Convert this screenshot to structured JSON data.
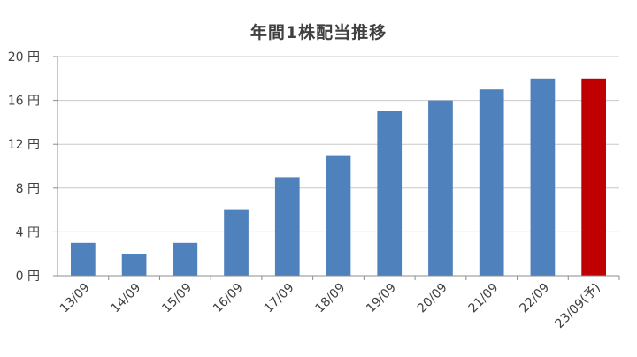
{
  "chart_data": {
    "type": "bar",
    "title": "年間1株配当推移",
    "xlabel": "",
    "ylabel": "",
    "categories": [
      "13/09",
      "14/09",
      "15/09",
      "16/09",
      "17/09",
      "18/09",
      "19/09",
      "20/09",
      "21/09",
      "22/09",
      "23/09(予)"
    ],
    "values": [
      3,
      2,
      3,
      6,
      9,
      11,
      15,
      16,
      17,
      18,
      18
    ],
    "ylim": [
      0,
      20
    ],
    "yticks": [
      0,
      4,
      8,
      12,
      16,
      20
    ],
    "ytick_labels": [
      "0 円",
      "4 円",
      "8 円",
      "12 円",
      "16 円",
      "20 円"
    ],
    "grid": true,
    "legend": "none",
    "colors": {
      "actual": "#4f81bd",
      "forecast": "#c00000",
      "grid": "#c8c8c8",
      "axis": "#8c8c8c",
      "text": "#404040"
    },
    "forecast_index": 10
  }
}
